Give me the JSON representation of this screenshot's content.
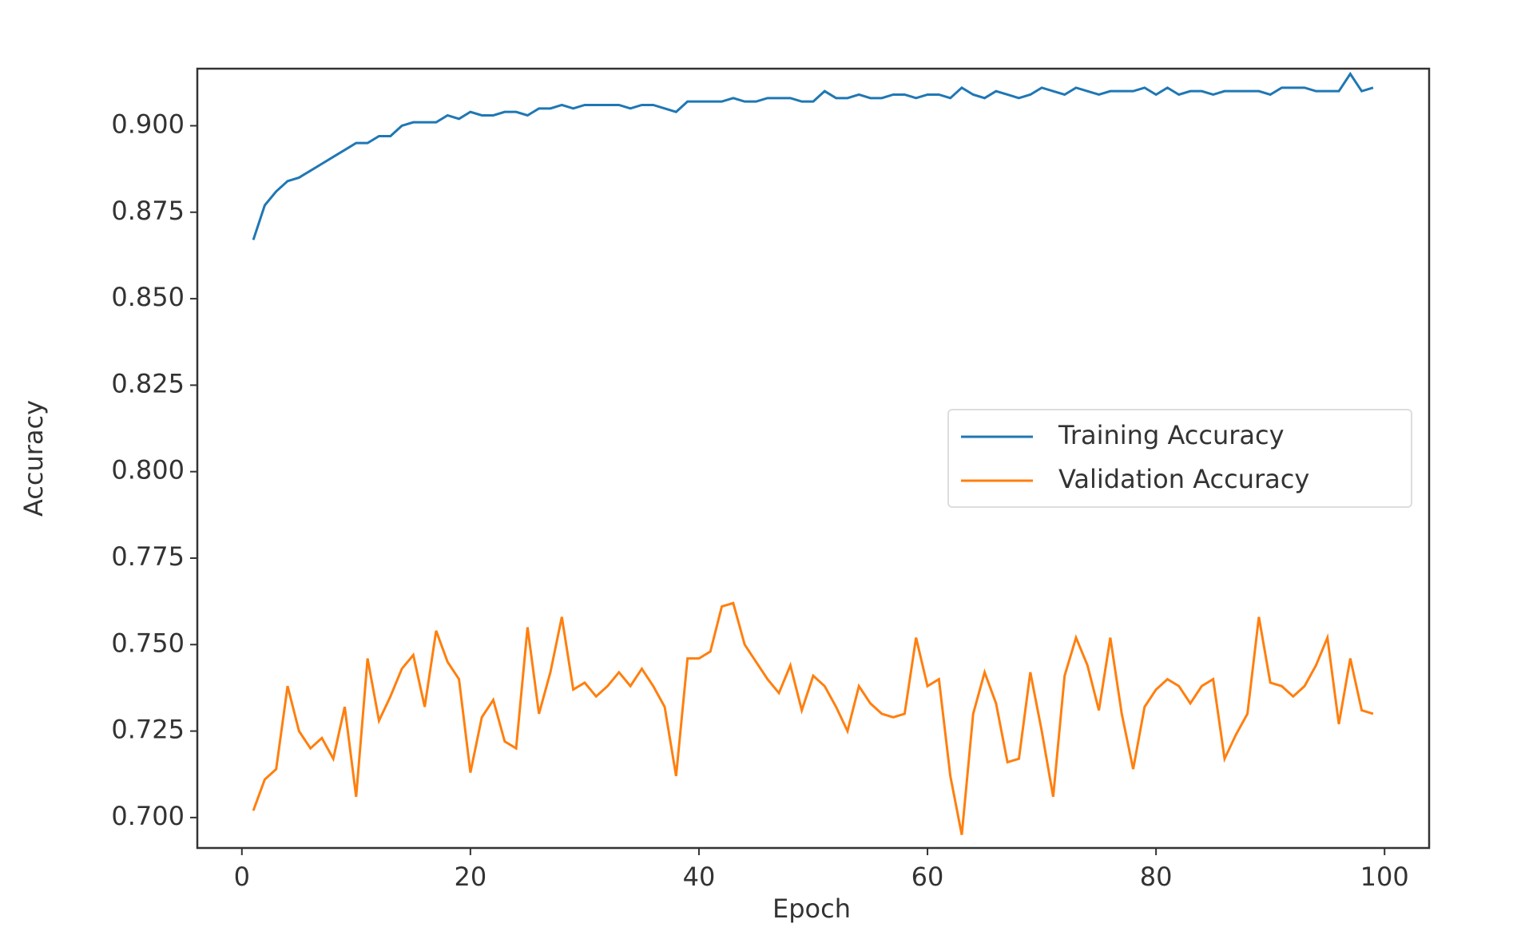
{
  "chart_data": {
    "type": "line",
    "xlabel": "Epoch",
    "ylabel": "Accuracy",
    "x": [
      1,
      2,
      3,
      4,
      5,
      6,
      7,
      8,
      9,
      10,
      11,
      12,
      13,
      14,
      15,
      16,
      17,
      18,
      19,
      20,
      21,
      22,
      23,
      24,
      25,
      26,
      27,
      28,
      29,
      30,
      31,
      32,
      33,
      34,
      35,
      36,
      37,
      38,
      39,
      40,
      41,
      42,
      43,
      44,
      45,
      46,
      47,
      48,
      49,
      50,
      51,
      52,
      53,
      54,
      55,
      56,
      57,
      58,
      59,
      60,
      61,
      62,
      63,
      64,
      65,
      66,
      67,
      68,
      69,
      70,
      71,
      72,
      73,
      74,
      75,
      76,
      77,
      78,
      79,
      80,
      81,
      82,
      83,
      84,
      85,
      86,
      87,
      88,
      89,
      90,
      91,
      92,
      93,
      94,
      95,
      96,
      97,
      98,
      99
    ],
    "series": [
      {
        "name": "Training Accuracy",
        "color": "#1f77b4",
        "values": [
          0.867,
          0.877,
          0.881,
          0.884,
          0.885,
          0.887,
          0.889,
          0.891,
          0.893,
          0.895,
          0.895,
          0.897,
          0.897,
          0.9,
          0.901,
          0.901,
          0.901,
          0.903,
          0.902,
          0.904,
          0.903,
          0.903,
          0.904,
          0.904,
          0.903,
          0.905,
          0.905,
          0.906,
          0.905,
          0.906,
          0.906,
          0.906,
          0.906,
          0.905,
          0.906,
          0.906,
          0.905,
          0.904,
          0.907,
          0.907,
          0.907,
          0.907,
          0.908,
          0.907,
          0.907,
          0.908,
          0.908,
          0.908,
          0.907,
          0.907,
          0.91,
          0.908,
          0.908,
          0.909,
          0.908,
          0.908,
          0.909,
          0.909,
          0.908,
          0.909,
          0.909,
          0.908,
          0.911,
          0.909,
          0.908,
          0.91,
          0.909,
          0.908,
          0.909,
          0.911,
          0.91,
          0.909,
          0.911,
          0.91,
          0.909,
          0.91,
          0.91,
          0.91,
          0.911,
          0.909,
          0.911,
          0.909,
          0.91,
          0.91,
          0.909,
          0.91,
          0.91,
          0.91,
          0.91,
          0.909,
          0.911,
          0.911,
          0.911,
          0.91,
          0.91,
          0.91,
          0.915,
          0.91,
          0.911
        ]
      },
      {
        "name": "Validation Accuracy",
        "color": "#ff7f0e",
        "values": [
          0.702,
          0.711,
          0.714,
          0.738,
          0.725,
          0.72,
          0.723,
          0.717,
          0.732,
          0.706,
          0.746,
          0.728,
          0.735,
          0.743,
          0.747,
          0.732,
          0.754,
          0.745,
          0.74,
          0.713,
          0.729,
          0.734,
          0.722,
          0.72,
          0.755,
          0.73,
          0.742,
          0.758,
          0.737,
          0.739,
          0.735,
          0.738,
          0.742,
          0.738,
          0.743,
          0.738,
          0.732,
          0.712,
          0.746,
          0.746,
          0.748,
          0.761,
          0.762,
          0.75,
          0.745,
          0.74,
          0.736,
          0.744,
          0.731,
          0.741,
          0.738,
          0.732,
          0.725,
          0.738,
          0.733,
          0.73,
          0.729,
          0.73,
          0.752,
          0.738,
          0.74,
          0.712,
          0.695,
          0.73,
          0.742,
          0.733,
          0.716,
          0.717,
          0.742,
          0.725,
          0.706,
          0.741,
          0.752,
          0.744,
          0.731,
          0.752,
          0.73,
          0.714,
          0.732,
          0.737,
          0.74,
          0.738,
          0.733,
          0.738,
          0.74,
          0.717,
          0.724,
          0.73,
          0.758,
          0.739,
          0.738,
          0.735,
          0.738,
          0.744,
          0.752,
          0.727,
          0.746,
          0.731,
          0.73
        ]
      }
    ],
    "xlim": [
      -3.9,
      103.9
    ],
    "xticks": [
      0,
      20,
      40,
      60,
      80,
      100
    ],
    "ylim": [
      0.6912,
      0.9165
    ],
    "yticks": [
      {
        "value": 0.7,
        "label": "0.700"
      },
      0.725,
      {
        "value": 0.75,
        "label": "0.750"
      },
      0.775,
      {
        "value": 0.8,
        "label": "0.800"
      },
      0.825,
      {
        "value": 0.85,
        "label": "0.850"
      },
      0.875,
      {
        "value": 0.9,
        "label": "0.900"
      }
    ],
    "legend": "center right"
  }
}
